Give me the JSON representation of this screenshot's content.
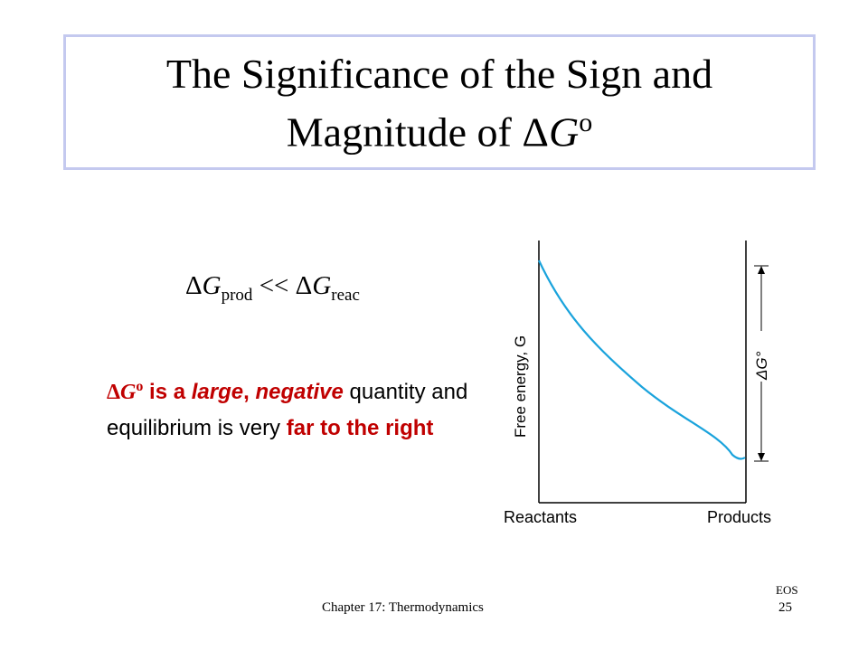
{
  "title": {
    "line1": "The Significance of the Sign and",
    "line2_prefix": "Magnitude of ",
    "delta": "Δ",
    "g": "G",
    "superscript": "o"
  },
  "formula": {
    "delta1": "Δ",
    "g1": "G",
    "sub1": "prod",
    "operator": " << ",
    "delta2": "Δ",
    "g2": "G",
    "sub2": "reac"
  },
  "statement": {
    "delta": "Δ",
    "g": "G",
    "superscript": "o",
    "is_a": " is a ",
    "large": "large",
    "comma": ", ",
    "negative": "negative",
    "middle": "quantity and equilibrium is very ",
    "far_right": "far to the right"
  },
  "diagram": {
    "y_axis_label": "Free energy, G",
    "x_left_label": "Reactants",
    "x_right_label": "Products",
    "delta_g_label": "ΔG°",
    "curve_color": "#1aa3dc"
  },
  "footer": {
    "chapter": "Chapter 17: Thermodynamics",
    "eos": "EOS",
    "page": "25"
  }
}
